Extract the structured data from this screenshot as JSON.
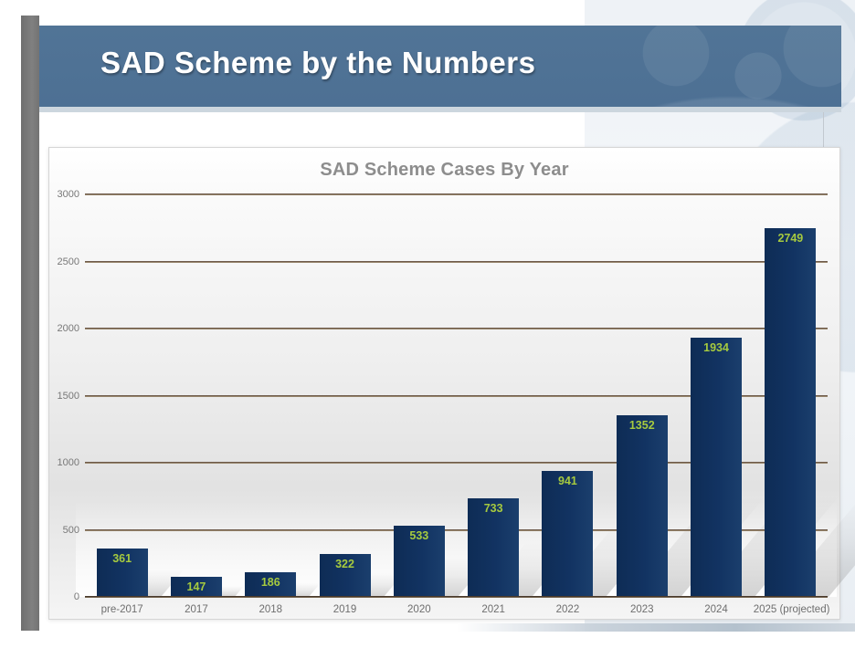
{
  "header": {
    "title": "SAD Scheme by the Numbers"
  },
  "chart_data": {
    "type": "bar",
    "title": "SAD Scheme Cases By Year",
    "categories": [
      "pre-2017",
      "2017",
      "2018",
      "2019",
      "2020",
      "2021",
      "2022",
      "2023",
      "2024",
      "2025 (projected)"
    ],
    "values": [
      361,
      147,
      186,
      322,
      533,
      733,
      941,
      1352,
      1934,
      2749
    ],
    "xlabel": "",
    "ylabel": "",
    "ylim": [
      0,
      3000
    ],
    "yticks": [
      0,
      500,
      1000,
      1500,
      2000,
      2500,
      3000
    ],
    "grid": true,
    "legend": false,
    "bar_color": "#123362",
    "bar_gradient": [
      "#0e2c55",
      "#1b3f6d"
    ],
    "value_label_color": "#a6ca3f",
    "grid_color_top": "#5a463a",
    "grid_color_bottom": "#ab9a7d",
    "axis_color": "#33241b",
    "tick_label_color": "#787878",
    "title_color": "#8d8d8d"
  },
  "theme": {
    "header_band_color": "#4d7094",
    "header_text_color": "#ffffff",
    "accent_bar_color": "#7b7b7b",
    "panel_border_color": "#d5d5d5"
  }
}
